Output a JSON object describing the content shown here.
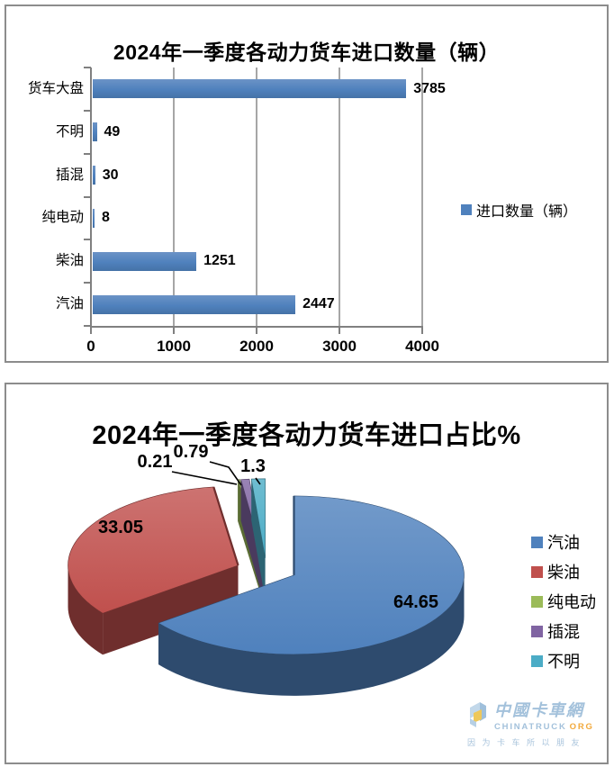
{
  "chart_data": [
    {
      "type": "bar",
      "orientation": "horizontal",
      "title": "2024年一季度各动力货车进口数量（辆）",
      "categories": [
        "货车大盘",
        "不明",
        "插混",
        "纯电动",
        "柴油",
        "汽油"
      ],
      "values": [
        3785,
        49,
        30,
        8,
        1251,
        2447
      ],
      "data_labels": [
        "3785",
        "49",
        "30",
        "8",
        "1251",
        "2447"
      ],
      "xlim": [
        0,
        4000
      ],
      "x_ticks": [
        "0",
        "1000",
        "2000",
        "3000",
        "4000"
      ],
      "grid": "vertical-major-on",
      "legend": [
        "进口数量（辆）"
      ],
      "legend_position": "right",
      "bar_color": "#4F81BD",
      "axis_color": "#808080"
    },
    {
      "type": "pie",
      "style": "3d-exploded",
      "title": "2024年一季度各动力货车进口占比%",
      "labels": [
        "汽油",
        "柴油",
        "纯电动",
        "插混",
        "不明"
      ],
      "values": [
        64.65,
        33.05,
        0.21,
        0.79,
        1.3
      ],
      "data_labels": [
        "64.65",
        "33.05",
        "0.21",
        "0.79",
        "1.3"
      ],
      "colors": [
        "#4F81BD",
        "#C0504D",
        "#9BBB59",
        "#8064A2",
        "#4BACC6"
      ],
      "legend_position": "right",
      "start_angle_deg": 0,
      "clockwise": true
    }
  ],
  "watermark": {
    "brand_cn": "中國卡車網",
    "brand_en": "CHINATRUCK",
    "brand_tld": "ORG",
    "tagline": "因为卡车所以朋友",
    "brand_color": "#A3C1DB",
    "tld_color": "#F2A93B"
  }
}
